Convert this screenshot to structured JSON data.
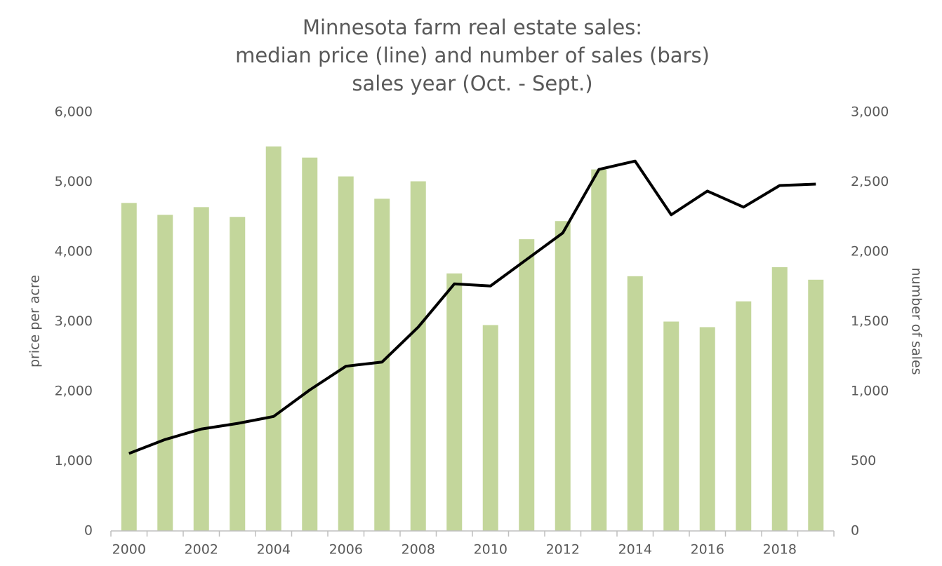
{
  "chart_data": {
    "type": "combo",
    "title": [
      "Minnesota farm real estate sales:",
      "median price (line) and number of sales (bars)",
      "sales year (Oct. - Sept.)"
    ],
    "y_label": "price per acre",
    "y2_label": "number of sales",
    "categories": [
      "2000",
      null,
      "2002",
      null,
      "2004",
      null,
      "2006",
      null,
      "2008",
      null,
      "2010",
      null,
      "2012",
      null,
      "2014",
      null,
      "2016",
      null,
      "2018",
      null
    ],
    "series": [
      {
        "type": "bar",
        "axis": "y2",
        "color": "#c3d69b",
        "values": [
          2350,
          2265,
          2320,
          2250,
          2755,
          2675,
          2540,
          2380,
          2505,
          1845,
          1475,
          2090,
          2220,
          2590,
          1825,
          1500,
          1460,
          1645,
          1890,
          1800
        ]
      },
      {
        "type": "line",
        "axis": "y",
        "color": "#000000",
        "values": [
          1110,
          1310,
          1460,
          1540,
          1640,
          2020,
          2360,
          2420,
          2920,
          3540,
          3510,
          3890,
          4270,
          5180,
          5300,
          4530,
          4870,
          4640,
          4950,
          4970
        ]
      }
    ],
    "ylim": [
      0,
      6000
    ],
    "yticks": [
      0,
      {
        "value": 1000,
        "label": "1,000"
      },
      {
        "value": 2000,
        "label": "2,000"
      },
      {
        "value": 3000,
        "label": "3,000"
      },
      {
        "value": 4000,
        "label": "4,000"
      },
      {
        "value": 5000,
        "label": "5,000"
      },
      {
        "value": 6000,
        "label": "6,000"
      }
    ],
    "y2lim": [
      0,
      3000
    ],
    "y2ticks": [
      0,
      500,
      {
        "value": 1000,
        "label": "1,000"
      },
      {
        "value": 1500,
        "label": "1,500"
      },
      {
        "value": 2000,
        "label": "2,000"
      },
      {
        "value": 2500,
        "label": "2,500"
      },
      {
        "value": 3000,
        "label": "3,000"
      }
    ],
    "grid": false
  }
}
